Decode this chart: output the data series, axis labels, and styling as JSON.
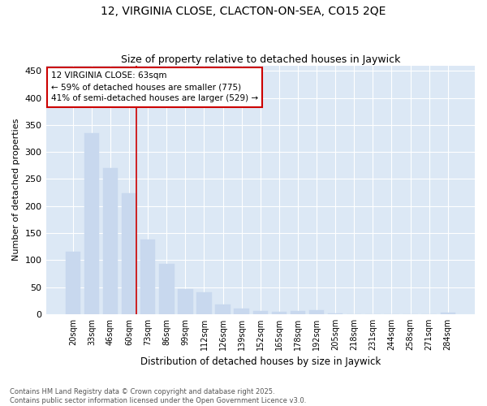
{
  "title1": "12, VIRGINIA CLOSE, CLACTON-ON-SEA, CO15 2QE",
  "title2": "Size of property relative to detached houses in Jaywick",
  "xlabel": "Distribution of detached houses by size in Jaywick",
  "ylabel": "Number of detached properties",
  "categories": [
    "20sqm",
    "33sqm",
    "46sqm",
    "60sqm",
    "73sqm",
    "86sqm",
    "99sqm",
    "112sqm",
    "126sqm",
    "139sqm",
    "152sqm",
    "165sqm",
    "178sqm",
    "192sqm",
    "205sqm",
    "218sqm",
    "231sqm",
    "244sqm",
    "258sqm",
    "271sqm",
    "284sqm"
  ],
  "values": [
    115,
    335,
    270,
    223,
    138,
    93,
    46,
    40,
    18,
    10,
    6,
    5,
    6,
    7,
    2,
    0,
    0,
    0,
    0,
    0,
    3
  ],
  "bar_color": "#c8d8ee",
  "bar_edge_color": "#c8d8ee",
  "fig_background": "#ffffff",
  "plot_background": "#dce8f5",
  "grid_color": "#ffffff",
  "ref_line_color": "#cc0000",
  "ref_line_index": 3,
  "annotation_line1": "12 VIRGINIA CLOSE: 63sqm",
  "annotation_line2": "← 59% of detached houses are smaller (775)",
  "annotation_line3": "41% of semi-detached houses are larger (529) →",
  "annotation_box_facecolor": "#ffffff",
  "annotation_box_edgecolor": "#cc0000",
  "footer_text": "Contains HM Land Registry data © Crown copyright and database right 2025.\nContains public sector information licensed under the Open Government Licence v3.0.",
  "ylim": [
    0,
    460
  ],
  "yticks": [
    0,
    50,
    100,
    150,
    200,
    250,
    300,
    350,
    400,
    450
  ]
}
